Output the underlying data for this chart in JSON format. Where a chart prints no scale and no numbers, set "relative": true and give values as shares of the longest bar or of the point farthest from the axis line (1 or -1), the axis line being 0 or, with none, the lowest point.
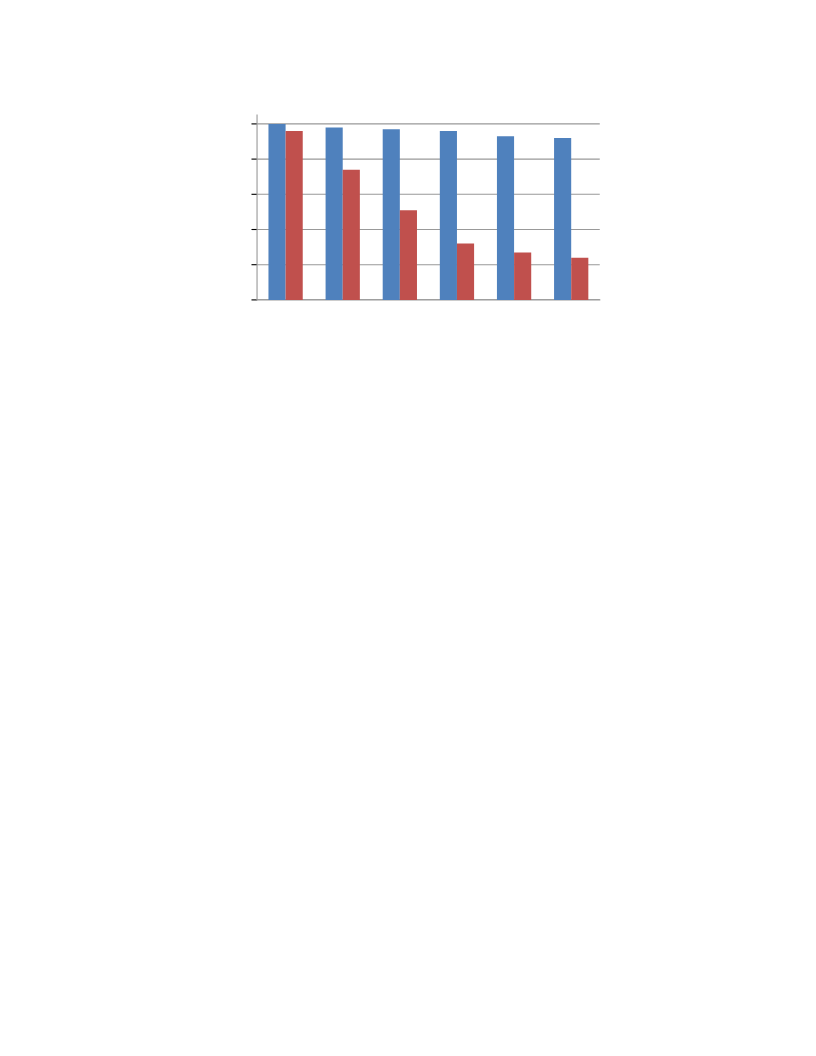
{
  "chart_data": {
    "type": "bar",
    "relative": true,
    "categories": [
      null,
      null,
      null,
      null,
      null,
      null
    ],
    "series": [
      {
        "color": "#4f81bd",
        "values": [
          1,
          0.98,
          0.97,
          0.96,
          0.93,
          0.92
        ]
      },
      {
        "color": "#c0504d",
        "values": [
          0.96,
          0.74,
          0.51,
          0.32,
          0.27,
          0.24
        ]
      }
    ],
    "grid": "y"
  }
}
